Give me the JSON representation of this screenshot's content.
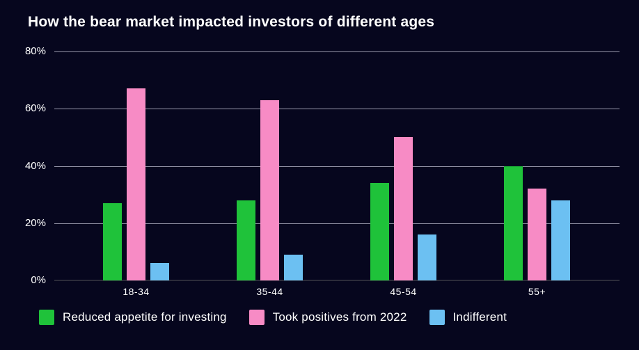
{
  "chart_data": {
    "type": "bar",
    "title": "How the bear market impacted investors of different ages",
    "categories": [
      "18-34",
      "35-44",
      "45-54",
      "55+"
    ],
    "series": [
      {
        "name": "Reduced appetite for investing",
        "color": "#1fc23a",
        "values": [
          27,
          28,
          34,
          40
        ]
      },
      {
        "name": "Took positives from 2022",
        "color": "#f78bc5",
        "values": [
          67,
          63,
          50,
          32
        ]
      },
      {
        "name": "Indifferent",
        "color": "#6cc0f2",
        "values": [
          6,
          9,
          16,
          28
        ]
      }
    ],
    "xlabel": "",
    "ylabel": "",
    "yticks": [
      0,
      20,
      40,
      60,
      80
    ],
    "ytick_suffix": "%",
    "ylim": [
      0,
      80
    ],
    "grid": true,
    "legend_position": "bottom-left"
  },
  "colors": {
    "background": "#06061e",
    "text": "#ffffff",
    "gridline": "#9a9aad",
    "baseline": "#2c2c3a"
  }
}
